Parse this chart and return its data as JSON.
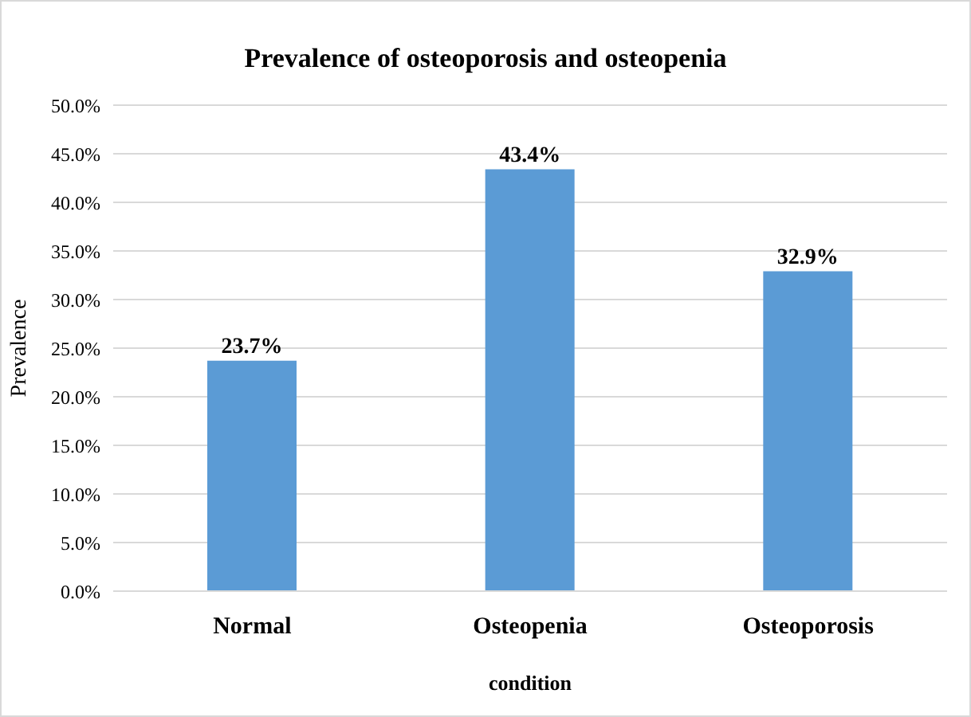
{
  "chart_data": {
    "type": "bar",
    "title": "Prevalence of osteoporosis and osteopenia",
    "xlabel": "condition",
    "ylabel": "Prevalence",
    "categories": [
      "Normal",
      "Osteopenia",
      "Osteoporosis"
    ],
    "values": [
      23.7,
      43.4,
      32.9
    ],
    "value_labels": [
      "23.7%",
      "43.4%",
      "32.9%"
    ],
    "color": "#5b9bd5",
    "ylim": [
      0,
      50
    ],
    "yticks": [
      {
        "value": 0,
        "label": "0.0%"
      },
      {
        "value": 5,
        "label": "5.0%"
      },
      {
        "value": 10,
        "label": "10.0%"
      },
      {
        "value": 15,
        "label": "15.0%"
      },
      {
        "value": 20,
        "label": "20.0%"
      },
      {
        "value": 25,
        "label": "25.0%"
      },
      {
        "value": 30,
        "label": "30.0%"
      },
      {
        "value": 35,
        "label": "35.0%"
      },
      {
        "value": 40,
        "label": "40.0%"
      },
      {
        "value": 45,
        "label": "45.0%"
      },
      {
        "value": 50,
        "label": "50.0%"
      }
    ],
    "grid": "y"
  }
}
